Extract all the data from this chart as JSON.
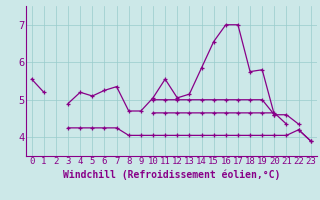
{
  "xlabel": "Windchill (Refroidissement éolien,°C)",
  "background_color": "#cce8e8",
  "line_color": "#880088",
  "xlim": [
    -0.5,
    23.5
  ],
  "ylim": [
    3.5,
    7.5
  ],
  "yticks": [
    4,
    5,
    6,
    7
  ],
  "xticks": [
    0,
    1,
    2,
    3,
    4,
    5,
    6,
    7,
    8,
    9,
    10,
    11,
    12,
    13,
    14,
    15,
    16,
    17,
    18,
    19,
    20,
    21,
    22,
    23
  ],
  "series": [
    [
      5.55,
      5.2,
      null,
      4.9,
      5.2,
      5.1,
      5.25,
      5.35,
      4.7,
      4.7,
      5.05,
      5.55,
      5.05,
      5.15,
      5.85,
      6.55,
      7.0,
      7.0,
      5.75,
      5.8,
      4.6,
      null,
      4.2,
      3.9
    ],
    [
      null,
      null,
      null,
      4.25,
      4.25,
      4.25,
      4.25,
      4.25,
      4.05,
      4.05,
      4.05,
      4.05,
      4.05,
      4.05,
      4.05,
      4.05,
      4.05,
      4.05,
      4.05,
      4.05,
      4.05,
      4.05,
      4.2,
      3.9
    ],
    [
      null,
      null,
      null,
      null,
      null,
      null,
      null,
      null,
      null,
      null,
      5.0,
      5.0,
      5.0,
      5.0,
      5.0,
      5.0,
      5.0,
      5.0,
      5.0,
      5.0,
      4.6,
      4.6,
      4.35,
      null
    ],
    [
      null,
      null,
      null,
      null,
      null,
      null,
      null,
      null,
      null,
      null,
      4.65,
      4.65,
      4.65,
      4.65,
      4.65,
      4.65,
      4.65,
      4.65,
      4.65,
      4.65,
      4.65,
      4.35,
      null,
      null
    ]
  ],
  "grid_color": "#99cccc",
  "tick_fontsize": 6.5,
  "label_fontsize": 7,
  "marker_size": 3,
  "lw": 0.9
}
